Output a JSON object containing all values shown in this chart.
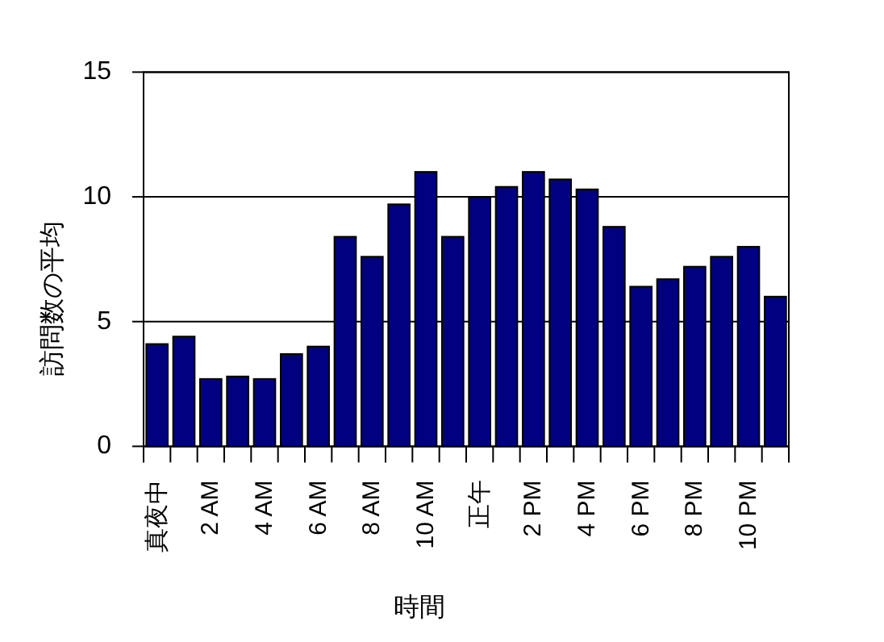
{
  "chart_data": {
    "type": "bar",
    "xlabel": "時間",
    "ylabel": "訪問数の平均",
    "categories": [
      "真夜中",
      null,
      "2 AM",
      null,
      "4 AM",
      null,
      "6 AM",
      null,
      "8 AM",
      null,
      "10 AM",
      null,
      "正午",
      null,
      "2 PM",
      null,
      "4 PM",
      null,
      "6 PM",
      null,
      "8 PM",
      null,
      "10 PM",
      null
    ],
    "values": [
      4.1,
      4.4,
      2.7,
      2.8,
      2.7,
      3.7,
      4.0,
      8.4,
      7.6,
      9.7,
      11.0,
      8.4,
      10.0,
      10.4,
      11.0,
      10.7,
      10.3,
      8.8,
      6.4,
      6.7,
      7.2,
      7.6,
      8.0,
      6.0
    ],
    "color": "#000080",
    "ylim": [
      0,
      15
    ],
    "yticks": [
      0,
      5,
      10,
      15
    ],
    "grid": "y"
  }
}
